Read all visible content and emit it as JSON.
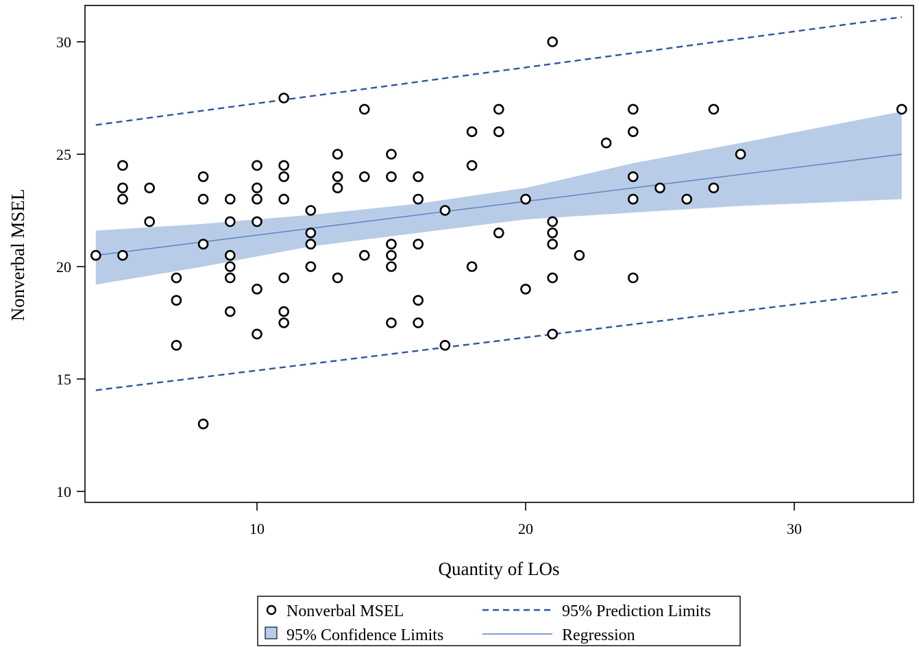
{
  "chart_data": {
    "type": "scatter",
    "title": "",
    "xlabel": "Quantity of LOs",
    "ylabel": "Nonverbal MSEL",
    "xlim": [
      4,
      34.5
    ],
    "ylim": [
      9.5,
      31.5
    ],
    "xticks": [
      10,
      20,
      30
    ],
    "yticks": [
      10,
      15,
      20,
      25,
      30
    ],
    "grid": false,
    "legend_position": "bottom",
    "colors": {
      "points": "#000000",
      "prediction": "#2F54A0",
      "confidence_fill": "#B8CCE8",
      "regression": "#5B7FC0"
    },
    "legend": [
      {
        "key": "points",
        "label": "Nonverbal MSEL"
      },
      {
        "key": "prediction",
        "label": "95% Prediction Limits"
      },
      {
        "key": "confidence",
        "label": "95% Confidence Limits"
      },
      {
        "key": "regression",
        "label": "Regression"
      }
    ],
    "regression": {
      "x": [
        4,
        34
      ],
      "y": [
        20.5,
        25.0
      ]
    },
    "prediction_limits": {
      "x": [
        4,
        34
      ],
      "upper": [
        26.3,
        31.1
      ],
      "lower": [
        14.5,
        18.9
      ]
    },
    "confidence_limits": {
      "x": [
        4,
        8,
        12,
        16,
        20,
        24,
        28,
        34
      ],
      "upper": [
        21.6,
        21.9,
        22.3,
        22.8,
        23.5,
        24.6,
        25.5,
        26.9
      ],
      "lower": [
        19.2,
        20.0,
        20.9,
        21.5,
        22.1,
        22.4,
        22.7,
        23.0
      ]
    },
    "series": [
      {
        "name": "Nonverbal MSEL",
        "points": [
          [
            4,
            20.5
          ],
          [
            5,
            24.5
          ],
          [
            5,
            23.5
          ],
          [
            5,
            23
          ],
          [
            5,
            20.5
          ],
          [
            6,
            23.5
          ],
          [
            6,
            22
          ],
          [
            7,
            19.5
          ],
          [
            7,
            18.5
          ],
          [
            7,
            16.5
          ],
          [
            8,
            24
          ],
          [
            8,
            23
          ],
          [
            8,
            21
          ],
          [
            8,
            13
          ],
          [
            9,
            23
          ],
          [
            9,
            22
          ],
          [
            9,
            20.5
          ],
          [
            9,
            20
          ],
          [
            9,
            19.5
          ],
          [
            9,
            18
          ],
          [
            10,
            24.5
          ],
          [
            10,
            23.5
          ],
          [
            10,
            23
          ],
          [
            10,
            22
          ],
          [
            10,
            19
          ],
          [
            10,
            17
          ],
          [
            11,
            27.5
          ],
          [
            11,
            24.5
          ],
          [
            11,
            24
          ],
          [
            11,
            23
          ],
          [
            11,
            19.5
          ],
          [
            11,
            18
          ],
          [
            11,
            17.5
          ],
          [
            12,
            22.5
          ],
          [
            12,
            21.5
          ],
          [
            12,
            21
          ],
          [
            12,
            20
          ],
          [
            13,
            25
          ],
          [
            13,
            24
          ],
          [
            13,
            23.5
          ],
          [
            13,
            19.5
          ],
          [
            14,
            27
          ],
          [
            14,
            24
          ],
          [
            14,
            20.5
          ],
          [
            15,
            25
          ],
          [
            15,
            24
          ],
          [
            15,
            21
          ],
          [
            15,
            20.5
          ],
          [
            15,
            20
          ],
          [
            15,
            17.5
          ],
          [
            16,
            24
          ],
          [
            16,
            23
          ],
          [
            16,
            21
          ],
          [
            16,
            18.5
          ],
          [
            16,
            17.5
          ],
          [
            17,
            22.5
          ],
          [
            17,
            16.5
          ],
          [
            18,
            26
          ],
          [
            18,
            24.5
          ],
          [
            18,
            20
          ],
          [
            19,
            27
          ],
          [
            19,
            26
          ],
          [
            19,
            21.5
          ],
          [
            20,
            23
          ],
          [
            20,
            19
          ],
          [
            21,
            30
          ],
          [
            21,
            22
          ],
          [
            21,
            21.5
          ],
          [
            21,
            21
          ],
          [
            21,
            19.5
          ],
          [
            21,
            17
          ],
          [
            22,
            20.5
          ],
          [
            23,
            25.5
          ],
          [
            24,
            27
          ],
          [
            24,
            26
          ],
          [
            24,
            24
          ],
          [
            24,
            23
          ],
          [
            24,
            19.5
          ],
          [
            25,
            23.5
          ],
          [
            26,
            23
          ],
          [
            27,
            27
          ],
          [
            27,
            23.5
          ],
          [
            28,
            25
          ],
          [
            34,
            27
          ]
        ]
      }
    ]
  }
}
